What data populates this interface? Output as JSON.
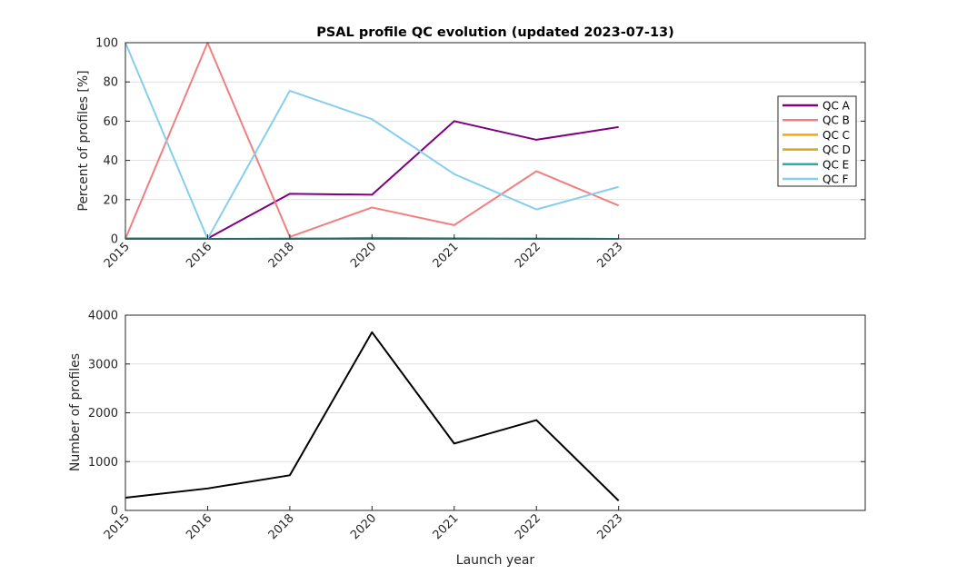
{
  "chart_data": [
    {
      "type": "line",
      "title": "PSAL profile QC evolution (updated 2023-07-13)",
      "ylabel": "Percent of profiles [%]",
      "xlabel": "",
      "categories": [
        "2015",
        "2016",
        "2018",
        "2020",
        "2021",
        "2022",
        "2023"
      ],
      "x_extent": [
        0,
        9
      ],
      "ylim": [
        0,
        100
      ],
      "yticks": [
        0,
        20,
        40,
        60,
        80,
        100
      ],
      "grid": true,
      "legend_position": "right",
      "series": [
        {
          "name": "QC A",
          "color": "#800080",
          "values": [
            0.2,
            0.2,
            23,
            22.5,
            60,
            50.5,
            57
          ]
        },
        {
          "name": "QC B",
          "color": "#f08080",
          "values": [
            0,
            100,
            1,
            16,
            7,
            34.5,
            17
          ]
        },
        {
          "name": "QC C",
          "color": "#ffa500",
          "values": [
            0,
            0,
            0,
            0,
            0,
            0.2,
            0
          ]
        },
        {
          "name": "QC D",
          "color": "#daa520",
          "values": [
            0,
            0,
            0.3,
            0.3,
            0.3,
            0.3,
            0
          ]
        },
        {
          "name": "QC E",
          "color": "#20b2aa",
          "values": [
            0,
            0,
            0,
            0.5,
            0.3,
            0,
            0
          ]
        },
        {
          "name": "QC F",
          "color": "#87ceeb",
          "values": [
            100,
            0,
            75.5,
            61,
            33,
            15,
            26.5
          ]
        }
      ]
    },
    {
      "type": "line",
      "title": "",
      "ylabel": "Number of profiles",
      "xlabel": "Launch year",
      "categories": [
        "2015",
        "2016",
        "2018",
        "2020",
        "2021",
        "2022",
        "2023"
      ],
      "x_extent": [
        0,
        9
      ],
      "ylim": [
        0,
        4000
      ],
      "yticks": [
        0,
        1000,
        2000,
        3000,
        4000
      ],
      "grid": true,
      "series": [
        {
          "name": "",
          "color": "#000000",
          "values": [
            260,
            450,
            720,
            3650,
            1370,
            1850,
            200
          ]
        }
      ]
    }
  ]
}
